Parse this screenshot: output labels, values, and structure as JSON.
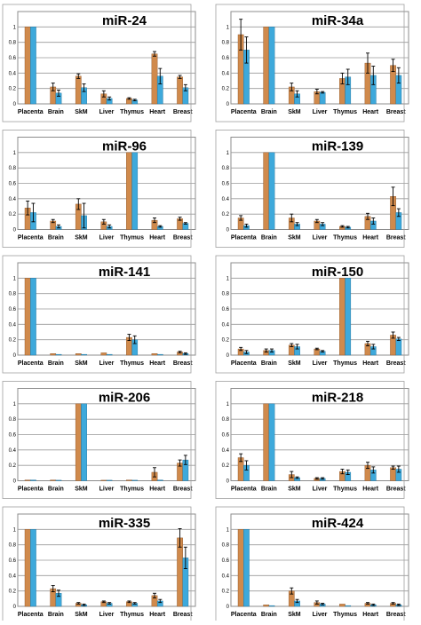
{
  "figure": {
    "categories": [
      "Placenta",
      "Brain",
      "SkM",
      "Liver",
      "Thymus",
      "Heart",
      "Breast"
    ],
    "series_colors": [
      "#d08a4c",
      "#3ea9db"
    ],
    "yticks": [
      "0",
      "0.2",
      "0.4",
      "0.6",
      "0.8",
      "1"
    ],
    "grid": true,
    "error_bars": true
  },
  "chart_data": [
    {
      "type": "bar",
      "title": "miR-24",
      "categories": [
        "Placenta",
        "Brain",
        "SkM",
        "Liver",
        "Thymus",
        "Heart",
        "Breast"
      ],
      "ylim": [
        0,
        1.2
      ],
      "series": [
        {
          "values": [
            1.0,
            0.22,
            0.36,
            0.13,
            0.07,
            0.65,
            0.35
          ],
          "errors": [
            0.0,
            0.05,
            0.03,
            0.04,
            0.01,
            0.03,
            0.02
          ]
        },
        {
          "values": [
            1.0,
            0.14,
            0.21,
            0.07,
            0.05,
            0.36,
            0.21
          ],
          "errors": [
            0.0,
            0.04,
            0.05,
            0.02,
            0.01,
            0.1,
            0.04
          ]
        }
      ]
    },
    {
      "type": "bar",
      "title": "miR-34a",
      "categories": [
        "Placenta",
        "Brain",
        "SkM",
        "Liver",
        "Thymus",
        "Heart",
        "Breast"
      ],
      "ylim": [
        0,
        1.2
      ],
      "series": [
        {
          "values": [
            0.9,
            1.0,
            0.22,
            0.16,
            0.33,
            0.53,
            0.5
          ],
          "errors": [
            0.2,
            0.0,
            0.05,
            0.03,
            0.07,
            0.13,
            0.08
          ]
        },
        {
          "values": [
            0.7,
            1.0,
            0.13,
            0.15,
            0.35,
            0.37,
            0.37
          ],
          "errors": [
            0.17,
            0.0,
            0.04,
            0.01,
            0.1,
            0.12,
            0.1
          ]
        }
      ]
    },
    {
      "type": "bar",
      "title": "miR-96",
      "categories": [
        "Placenta",
        "Brain",
        "SkM",
        "Liver",
        "Thymus",
        "Heart",
        "Breast"
      ],
      "ylim": [
        0,
        1.2
      ],
      "series": [
        {
          "values": [
            0.28,
            0.11,
            0.33,
            0.1,
            1.0,
            0.12,
            0.14
          ],
          "errors": [
            0.09,
            0.02,
            0.07,
            0.03,
            0.0,
            0.03,
            0.02
          ]
        },
        {
          "values": [
            0.22,
            0.04,
            0.18,
            0.04,
            1.0,
            0.04,
            0.08
          ],
          "errors": [
            0.12,
            0.02,
            0.16,
            0.02,
            0.0,
            0.01,
            0.01
          ]
        }
      ]
    },
    {
      "type": "bar",
      "title": "miR-139",
      "categories": [
        "Placenta",
        "Brain",
        "SkM",
        "Liver",
        "Thymus",
        "Heart",
        "Breast"
      ],
      "ylim": [
        0,
        1.2
      ],
      "series": [
        {
          "values": [
            0.15,
            1.0,
            0.15,
            0.11,
            0.04,
            0.17,
            0.43
          ],
          "errors": [
            0.03,
            0.0,
            0.05,
            0.02,
            0.01,
            0.04,
            0.12
          ]
        },
        {
          "values": [
            0.05,
            1.0,
            0.07,
            0.07,
            0.03,
            0.11,
            0.22
          ],
          "errors": [
            0.02,
            0.0,
            0.02,
            0.02,
            0.01,
            0.04,
            0.05
          ]
        }
      ]
    },
    {
      "type": "bar",
      "title": "miR-141",
      "categories": [
        "Placenta",
        "Brain",
        "SkM",
        "Liver",
        "Thymus",
        "Heart",
        "Breast"
      ],
      "ylim": [
        0,
        1.2
      ],
      "series": [
        {
          "values": [
            1.0,
            0.02,
            0.02,
            0.03,
            0.23,
            0.02,
            0.04
          ],
          "errors": [
            0.0,
            0.0,
            0.0,
            0.0,
            0.04,
            0.0,
            0.01
          ]
        },
        {
          "values": [
            1.0,
            0.01,
            0.01,
            0.01,
            0.2,
            0.01,
            0.02
          ],
          "errors": [
            0.0,
            0.0,
            0.0,
            0.0,
            0.05,
            0.0,
            0.01
          ]
        }
      ]
    },
    {
      "type": "bar",
      "title": "miR-150",
      "categories": [
        "Placenta",
        "Brain",
        "SkM",
        "Liver",
        "Thymus",
        "Heart",
        "Breast"
      ],
      "ylim": [
        0,
        1.2
      ],
      "series": [
        {
          "values": [
            0.08,
            0.06,
            0.13,
            0.08,
            1.0,
            0.15,
            0.26
          ],
          "errors": [
            0.02,
            0.02,
            0.02,
            0.01,
            0.0,
            0.03,
            0.04
          ]
        },
        {
          "values": [
            0.04,
            0.06,
            0.11,
            0.05,
            1.0,
            0.11,
            0.21
          ],
          "errors": [
            0.02,
            0.02,
            0.03,
            0.01,
            0.0,
            0.03,
            0.02
          ]
        }
      ]
    },
    {
      "type": "bar",
      "title": "miR-206",
      "categories": [
        "Placenta",
        "Brain",
        "SkM",
        "Liver",
        "Thymus",
        "Heart",
        "Breast"
      ],
      "ylim": [
        0,
        1.2
      ],
      "series": [
        {
          "values": [
            0.01,
            0.01,
            1.0,
            0.0,
            0.01,
            0.11,
            0.23
          ],
          "errors": [
            0.0,
            0.0,
            0.0,
            0.0,
            0.0,
            0.06,
            0.04
          ]
        },
        {
          "values": [
            0.01,
            0.0,
            1.0,
            0.0,
            0.0,
            0.01,
            0.27
          ],
          "errors": [
            0.0,
            0.0,
            0.0,
            0.0,
            0.0,
            0.0,
            0.06
          ]
        }
      ]
    },
    {
      "type": "bar",
      "title": "miR-218",
      "categories": [
        "Placenta",
        "Brain",
        "SkM",
        "Liver",
        "Thymus",
        "Heart",
        "Breast"
      ],
      "ylim": [
        0,
        1.2
      ],
      "series": [
        {
          "values": [
            0.3,
            1.0,
            0.08,
            0.03,
            0.12,
            0.2,
            0.17
          ],
          "errors": [
            0.05,
            0.0,
            0.04,
            0.01,
            0.03,
            0.04,
            0.02
          ]
        },
        {
          "values": [
            0.2,
            1.0,
            0.04,
            0.03,
            0.11,
            0.14,
            0.15
          ],
          "errors": [
            0.06,
            0.0,
            0.01,
            0.01,
            0.03,
            0.04,
            0.04
          ]
        }
      ]
    },
    {
      "type": "bar",
      "title": "miR-335",
      "categories": [
        "Placenta",
        "Brain",
        "SkM",
        "Liver",
        "Thymus",
        "Heart",
        "Breast"
      ],
      "ylim": [
        0,
        1.2
      ],
      "series": [
        {
          "values": [
            1.0,
            0.23,
            0.04,
            0.06,
            0.06,
            0.14,
            0.89
          ],
          "errors": [
            0.0,
            0.04,
            0.01,
            0.01,
            0.01,
            0.03,
            0.12
          ]
        },
        {
          "values": [
            1.0,
            0.17,
            0.02,
            0.04,
            0.04,
            0.07,
            0.63
          ],
          "errors": [
            0.0,
            0.04,
            0.01,
            0.01,
            0.01,
            0.02,
            0.14
          ]
        }
      ]
    },
    {
      "type": "bar",
      "title": "miR-424",
      "categories": [
        "Placenta",
        "Brain",
        "SkM",
        "Liver",
        "Thymus",
        "Heart",
        "Breast"
      ],
      "ylim": [
        0,
        1.2
      ],
      "series": [
        {
          "values": [
            1.0,
            0.02,
            0.2,
            0.05,
            0.03,
            0.04,
            0.04
          ],
          "errors": [
            0.0,
            0.0,
            0.04,
            0.02,
            0.0,
            0.01,
            0.01
          ]
        },
        {
          "values": [
            1.0,
            0.01,
            0.07,
            0.03,
            0.01,
            0.02,
            0.02
          ],
          "errors": [
            0.0,
            0.0,
            0.02,
            0.01,
            0.0,
            0.01,
            0.01
          ]
        }
      ]
    }
  ]
}
